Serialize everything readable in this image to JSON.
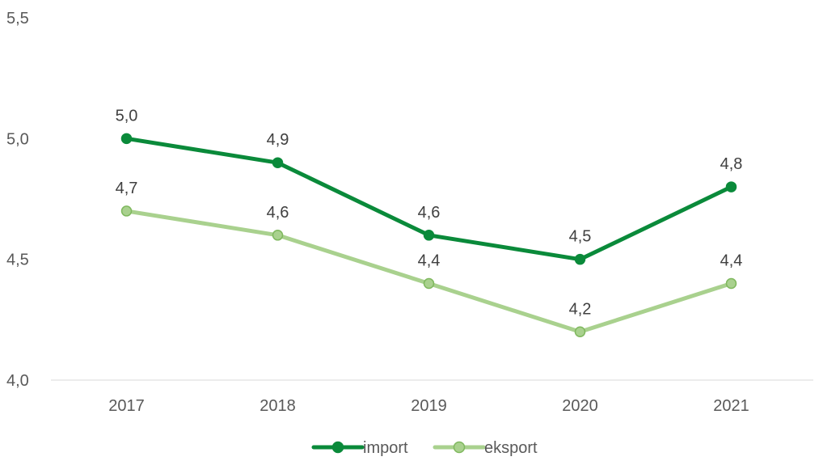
{
  "chart_data": {
    "type": "line",
    "categories": [
      "2017",
      "2018",
      "2019",
      "2020",
      "2021"
    ],
    "ylim": [
      4.0,
      5.5
    ],
    "yticks": [
      "4,0",
      "4,5",
      "5,0",
      "5,5"
    ],
    "ytick_values": [
      4.0,
      4.5,
      5.0,
      5.5
    ],
    "grid": false,
    "legend_position": "bottom",
    "series": [
      {
        "name": "import",
        "color": "#0A8A3A",
        "values": [
          5.0,
          4.9,
          4.6,
          4.5,
          4.8
        ],
        "labels": [
          "5,0",
          "4,9",
          "4,6",
          "4,5",
          "4,8"
        ]
      },
      {
        "name": "eksport",
        "color": "#A9D18E",
        "values": [
          4.7,
          4.6,
          4.4,
          4.2,
          4.4
        ],
        "labels": [
          "4,7",
          "4,6",
          "4,4",
          "4,2",
          "4,4"
        ]
      }
    ]
  }
}
